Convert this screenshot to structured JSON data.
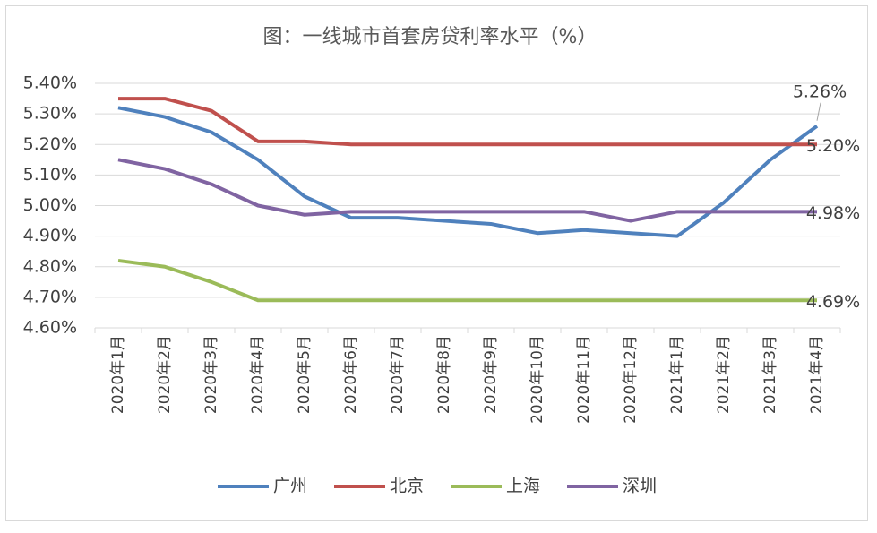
{
  "chart_data": {
    "type": "line",
    "title": "图：一线城市首套房贷利率水平（%）",
    "categories": [
      "2020年1月",
      "2020年2月",
      "2020年3月",
      "2020年4月",
      "2020年5月",
      "2020年6月",
      "2020年7月",
      "2020年8月",
      "2020年9月",
      "2020年10月",
      "2020年11月",
      "2020年12月",
      "2021年1月",
      "2021年2月",
      "2021年3月",
      "2021年4月"
    ],
    "series": [
      {
        "name": "广州",
        "color": "#4f81bd",
        "values": [
          5.32,
          5.29,
          5.24,
          5.15,
          5.03,
          4.96,
          4.96,
          4.95,
          4.94,
          4.91,
          4.92,
          4.91,
          4.9,
          5.01,
          5.15,
          5.26
        ],
        "value_labels": [
          null,
          null,
          null,
          null,
          null,
          null,
          null,
          null,
          null,
          null,
          null,
          null,
          null,
          null,
          null,
          "5.26%"
        ]
      },
      {
        "name": "北京",
        "color": "#c0504d",
        "values": [
          5.35,
          5.35,
          5.31,
          5.21,
          5.21,
          5.2,
          5.2,
          5.2,
          5.2,
          5.2,
          5.2,
          5.2,
          5.2,
          5.2,
          5.2,
          5.2
        ],
        "value_labels": [
          null,
          null,
          null,
          null,
          null,
          null,
          null,
          null,
          null,
          null,
          null,
          null,
          null,
          null,
          null,
          "5.20%"
        ]
      },
      {
        "name": "上海",
        "color": "#9bbb59",
        "values": [
          4.82,
          4.8,
          4.75,
          4.69,
          4.69,
          4.69,
          4.69,
          4.69,
          4.69,
          4.69,
          4.69,
          4.69,
          4.69,
          4.69,
          4.69,
          4.69
        ],
        "value_labels": [
          null,
          null,
          null,
          null,
          null,
          null,
          null,
          null,
          null,
          null,
          null,
          null,
          null,
          null,
          null,
          "4.69%"
        ]
      },
      {
        "name": "深圳",
        "color": "#8064a2",
        "values": [
          5.15,
          5.12,
          5.07,
          5.0,
          4.97,
          4.98,
          4.98,
          4.98,
          4.98,
          4.98,
          4.98,
          4.95,
          4.98,
          4.98,
          4.98,
          4.98
        ],
        "value_labels": [
          null,
          null,
          null,
          null,
          null,
          null,
          null,
          null,
          null,
          null,
          null,
          null,
          null,
          null,
          null,
          "4.98%"
        ]
      }
    ],
    "ylim": [
      4.6,
      5.4
    ],
    "yticks": [
      {
        "value": 4.6,
        "label": "4.60%"
      },
      {
        "value": 4.7,
        "label": "4.70%"
      },
      {
        "value": 4.8,
        "label": "4.80%"
      },
      {
        "value": 4.9,
        "label": "4.90%"
      },
      {
        "value": 5.0,
        "label": "5.00%"
      },
      {
        "value": 5.1,
        "label": "5.10%"
      },
      {
        "value": 5.2,
        "label": "5.20%"
      },
      {
        "value": 5.3,
        "label": "5.30%"
      },
      {
        "value": 5.4,
        "label": "5.40%"
      }
    ],
    "grid": true,
    "legend": "bottom"
  }
}
